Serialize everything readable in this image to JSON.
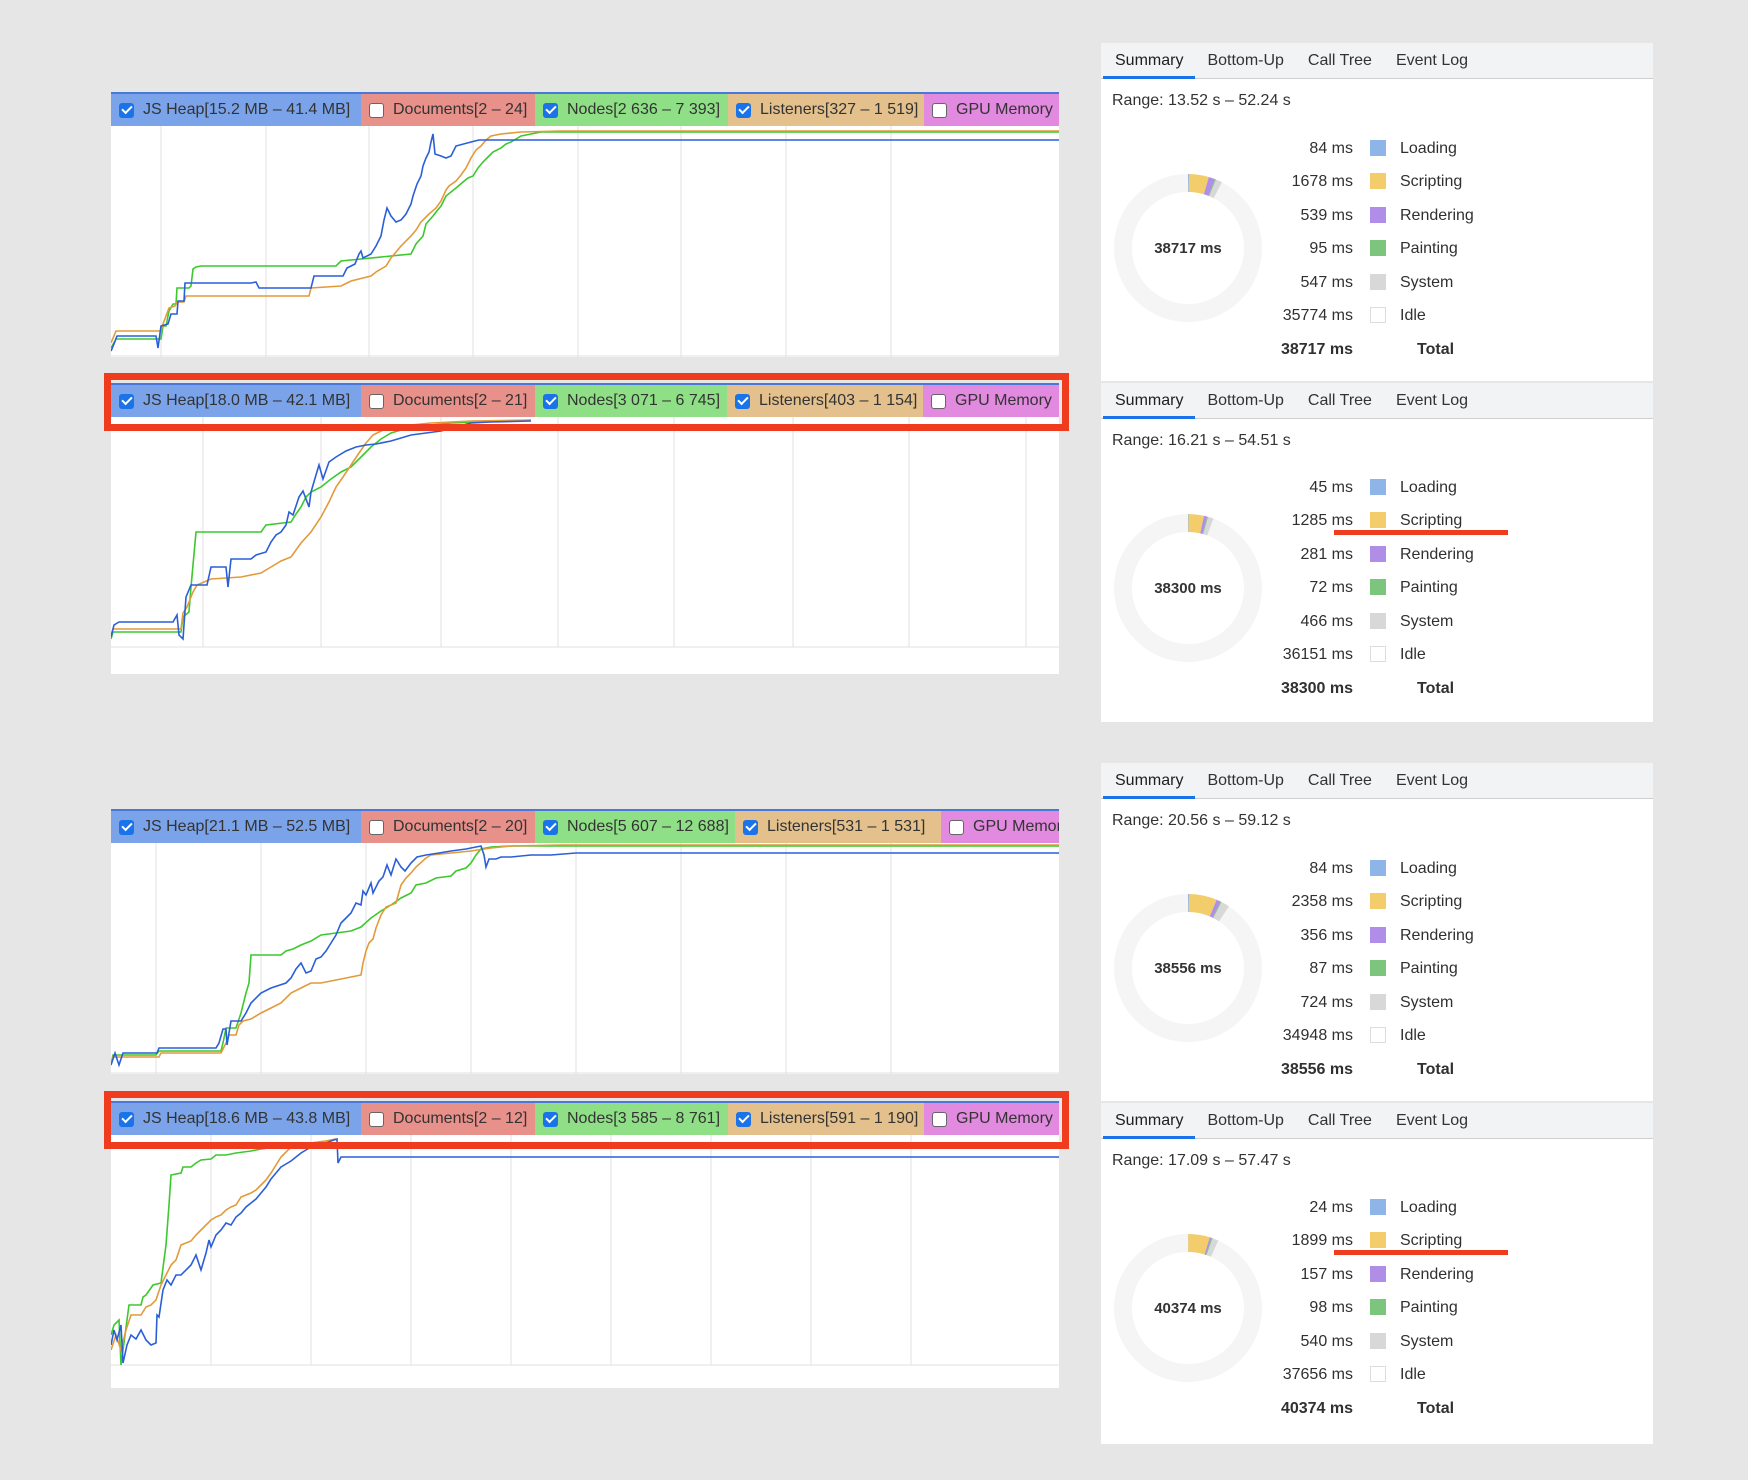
{
  "colors": {
    "page_bg": "#e6e6e6",
    "js_heap_line": "#2a5fd8",
    "documents_line": "#d9534f",
    "nodes_line": "#3cc82e",
    "listeners_line": "#e29a3b",
    "js_heap_bg": "#7aa3ea",
    "documents_bg": "#e8908a",
    "nodes_bg": "#8fdf86",
    "listeners_bg": "#e3c08c",
    "gpu_bg": "#e28ae0",
    "highlight": "#f03c1e",
    "loading": "#8fb4e8",
    "scripting": "#f3cd6b",
    "rendering": "#b08ee8",
    "painting": "#7dc47d",
    "system": "#d8d8d8",
    "idle": "#ffffff",
    "tab_active_underline": "#1a73e8"
  },
  "memory_panels": [
    {
      "counters": {
        "js_heap": {
          "label": "JS Heap[15.2 MB – 41.4 MB]",
          "checked": true
        },
        "documents": {
          "label": "Documents[2 – 24]",
          "checked": false
        },
        "nodes": {
          "label": "Nodes[2 636 – 7 393]",
          "checked": true
        },
        "listeners": {
          "label": "Listeners[327 – 1 519]",
          "checked": true
        },
        "gpu": {
          "label": "GPU Memory",
          "checked": false
        }
      },
      "highlighted": false
    },
    {
      "counters": {
        "js_heap": {
          "label": "JS Heap[18.0 MB – 42.1 MB]",
          "checked": true
        },
        "documents": {
          "label": "Documents[2 – 21]",
          "checked": false
        },
        "nodes": {
          "label": "Nodes[3 071 – 6 745]",
          "checked": true
        },
        "listeners": {
          "label": "Listeners[403 – 1 154]",
          "checked": true
        },
        "gpu": {
          "label": "GPU Memory",
          "checked": false
        }
      },
      "highlighted": true
    },
    {
      "counters": {
        "js_heap": {
          "label": "JS Heap[21.1 MB – 52.5 MB]",
          "checked": true
        },
        "documents": {
          "label": "Documents[2 – 20]",
          "checked": false
        },
        "nodes": {
          "label": "Nodes[5 607 – 12 688]",
          "checked": true
        },
        "listeners": {
          "label": "Listeners[531 – 1 531]",
          "checked": true
        },
        "gpu": {
          "label": "GPU Memory",
          "checked": false
        }
      },
      "highlighted": false
    },
    {
      "counters": {
        "js_heap": {
          "label": "JS Heap[18.6 MB – 43.8 MB]",
          "checked": true
        },
        "documents": {
          "label": "Documents[2 – 12]",
          "checked": false
        },
        "nodes": {
          "label": "Nodes[3 585 – 8 761]",
          "checked": true
        },
        "listeners": {
          "label": "Listeners[591 – 1 190]",
          "checked": true
        },
        "gpu": {
          "label": "GPU Memory",
          "checked": false
        }
      },
      "highlighted": true
    }
  ],
  "tabs": {
    "summary": "Summary",
    "bottom_up": "Bottom-Up",
    "call_tree": "Call Tree",
    "event_log": "Event Log"
  },
  "legend_labels": {
    "loading": "Loading",
    "scripting": "Scripting",
    "rendering": "Rendering",
    "painting": "Painting",
    "system": "System",
    "idle": "Idle",
    "total": "Total"
  },
  "summaries": [
    {
      "range": "Range: 13.52 s – 52.24 s",
      "donut_total": "38717 ms",
      "values": {
        "loading": "84 ms",
        "scripting": "1678 ms",
        "rendering": "539 ms",
        "painting": "95 ms",
        "system": "547 ms",
        "idle": "35774 ms",
        "total": "38717 ms"
      },
      "numbers": {
        "loading": 84,
        "scripting": 1678,
        "rendering": 539,
        "painting": 95,
        "system": 547,
        "idle": 35774
      },
      "scripting_underlined": false
    },
    {
      "range": "Range: 16.21 s – 54.51 s",
      "donut_total": "38300 ms",
      "values": {
        "loading": "45 ms",
        "scripting": "1285 ms",
        "rendering": "281 ms",
        "painting": "72 ms",
        "system": "466 ms",
        "idle": "36151 ms",
        "total": "38300 ms"
      },
      "numbers": {
        "loading": 45,
        "scripting": 1285,
        "rendering": 281,
        "painting": 72,
        "system": 466,
        "idle": 36151
      },
      "scripting_underlined": true
    },
    {
      "range": "Range: 20.56 s – 59.12 s",
      "donut_total": "38556 ms",
      "values": {
        "loading": "84 ms",
        "scripting": "2358 ms",
        "rendering": "356 ms",
        "painting": "87 ms",
        "system": "724 ms",
        "idle": "34948 ms",
        "total": "38556 ms"
      },
      "numbers": {
        "loading": 84,
        "scripting": 2358,
        "rendering": 356,
        "painting": 87,
        "system": 724,
        "idle": 34948
      },
      "scripting_underlined": false
    },
    {
      "range": "Range: 17.09 s – 57.47 s",
      "donut_total": "40374 ms",
      "values": {
        "loading": "24 ms",
        "scripting": "1899 ms",
        "rendering": "157 ms",
        "painting": "98 ms",
        "system": "540 ms",
        "idle": "37656 ms",
        "total": "40374 ms"
      },
      "numbers": {
        "loading": 24,
        "scripting": 1899,
        "rendering": 157,
        "painting": 98,
        "system": 540,
        "idle": 37656
      },
      "scripting_underlined": true
    }
  ]
}
